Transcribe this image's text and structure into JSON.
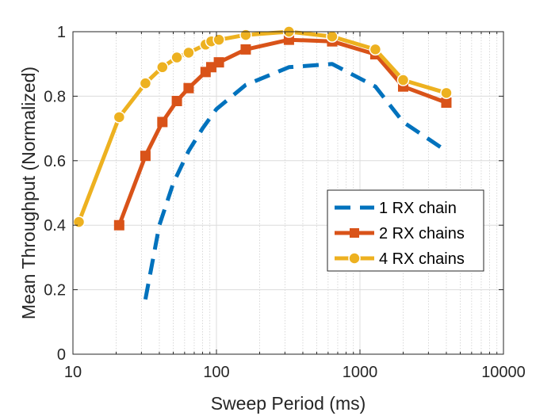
{
  "chart_data": {
    "type": "line",
    "title": "",
    "xlabel": "Sweep Period (ms)",
    "ylabel": "Mean Throughput (Normalized)",
    "xscale": "log",
    "xlim": [
      10,
      10000
    ],
    "ylim": [
      0,
      1
    ],
    "xticks": [
      10,
      100,
      1000,
      10000
    ],
    "xtick_labels": [
      "10",
      "100",
      "1000",
      "10000"
    ],
    "yticks": [
      0,
      0.2,
      0.4,
      0.6,
      0.8,
      1
    ],
    "ytick_labels": [
      "0",
      "0.2",
      "0.4",
      "0.6",
      "0.8",
      "1"
    ],
    "grid": true,
    "legend_position": "center-right",
    "series": [
      {
        "name": "1 RX chain",
        "color": "#0072BD",
        "style": "dashed",
        "marker": "none",
        "x": [
          32,
          40,
          50,
          64,
          80,
          100,
          160,
          320,
          640,
          1280,
          2000,
          4000
        ],
        "y": [
          0.17,
          0.4,
          0.53,
          0.63,
          0.7,
          0.76,
          0.835,
          0.89,
          0.9,
          0.83,
          0.72,
          0.63
        ]
      },
      {
        "name": "2 RX chains",
        "color": "#D95319",
        "style": "solid",
        "marker": "square",
        "x": [
          21,
          32,
          42,
          53,
          64,
          84,
          92,
          104,
          160,
          320,
          640,
          1280,
          2000,
          4000
        ],
        "y": [
          0.4,
          0.615,
          0.72,
          0.785,
          0.825,
          0.875,
          0.89,
          0.905,
          0.945,
          0.975,
          0.97,
          0.93,
          0.83,
          0.78
        ]
      },
      {
        "name": "4 RX chains",
        "color": "#EDB120",
        "style": "solid",
        "marker": "circle",
        "x": [
          11,
          21,
          32,
          42,
          53,
          64,
          84,
          92,
          104,
          160,
          320,
          640,
          1280,
          2000,
          4000
        ],
        "y": [
          0.41,
          0.735,
          0.84,
          0.89,
          0.92,
          0.935,
          0.96,
          0.97,
          0.975,
          0.99,
          1.0,
          0.985,
          0.945,
          0.85,
          0.81
        ]
      }
    ]
  }
}
